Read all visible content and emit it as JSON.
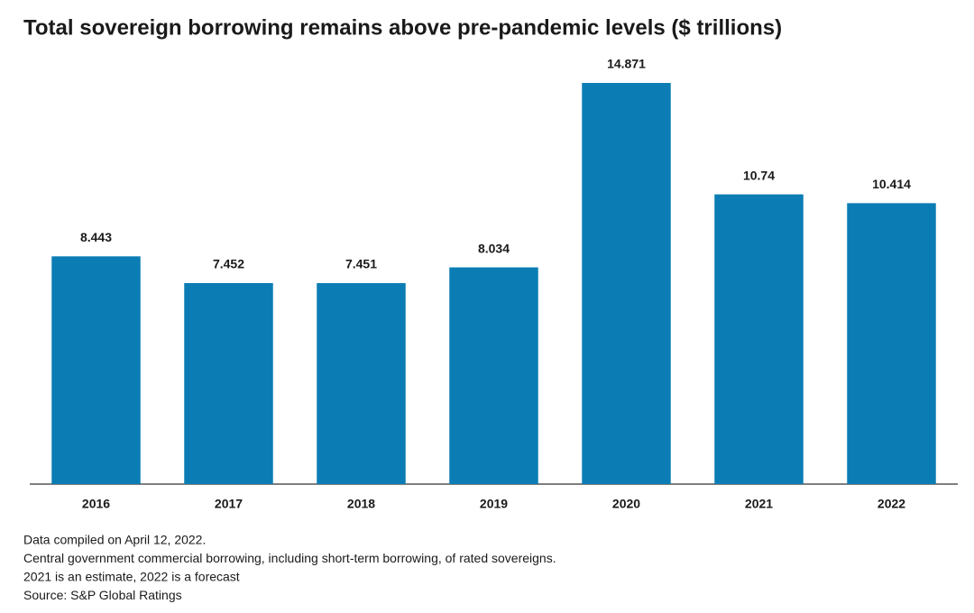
{
  "chart_data": {
    "type": "bar",
    "title": "Total sovereign borrowing remains above pre-pandemic levels ($ trillions)",
    "categories": [
      "2016",
      "2017",
      "2018",
      "2019",
      "2020",
      "2021",
      "2022"
    ],
    "values": [
      8.443,
      7.452,
      7.451,
      8.034,
      14.871,
      10.74,
      10.414
    ],
    "color": "#0b7db4",
    "notes": [
      "Data compiled on April 12, 2022.",
      "Central government commercial borrowing, including short-term borrowing, of rated sovereigns.",
      "2021 is an estimate, 2022 is a forecast",
      "Source: S&P Global Ratings"
    ]
  }
}
